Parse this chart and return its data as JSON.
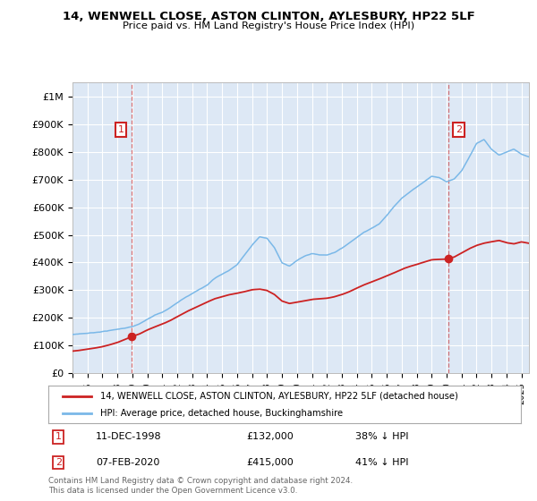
{
  "title1": "14, WENWELL CLOSE, ASTON CLINTON, AYLESBURY, HP22 5LF",
  "title2": "Price paid vs. HM Land Registry's House Price Index (HPI)",
  "ylim": [
    0,
    1050000
  ],
  "yticks": [
    0,
    100000,
    200000,
    300000,
    400000,
    500000,
    600000,
    700000,
    800000,
    900000,
    1000000
  ],
  "ytick_labels": [
    "£0",
    "£100K",
    "£200K",
    "£300K",
    "£400K",
    "£500K",
    "£600K",
    "£700K",
    "£800K",
    "£900K",
    "£1M"
  ],
  "hpi_color": "#7ab8e8",
  "price_color": "#cc2222",
  "bg_color": "#dde8f5",
  "grid_color": "#ffffff",
  "legend_label_price": "14, WENWELL CLOSE, ASTON CLINTON, AYLESBURY, HP22 5LF (detached house)",
  "legend_label_hpi": "HPI: Average price, detached house, Buckinghamshire",
  "ann1_label": "1",
  "ann1_date": "11-DEC-1998",
  "ann1_price": "£132,000",
  "ann1_pct": "38% ↓ HPI",
  "ann1_x": 1998.94,
  "ann1_y": 132000,
  "ann2_label": "2",
  "ann2_date": "07-FEB-2020",
  "ann2_price": "£415,000",
  "ann2_pct": "41% ↓ HPI",
  "ann2_x": 2020.1,
  "ann2_y": 415000,
  "footer": "Contains HM Land Registry data © Crown copyright and database right 2024.\nThis data is licensed under the Open Government Licence v3.0.",
  "xmin": 1995,
  "xmax": 2025.5
}
